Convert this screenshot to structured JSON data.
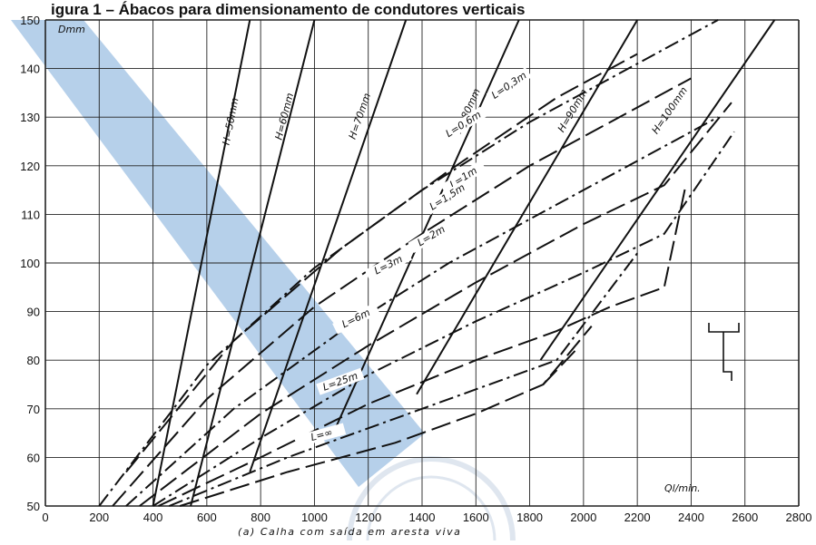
{
  "page": {
    "title": "igura 1 – Ábacos para dimensionamento de condutores verticais",
    "caption": "(a)  Calha com saída em aresta viva"
  },
  "chart_data": {
    "type": "line",
    "title": "igura 1 – Ábacos para dimensionamento de condutores verticais",
    "xlabel": "Ql/min.",
    "ylabel": "Dmm",
    "xlim": [
      0,
      2800
    ],
    "ylim": [
      50,
      150
    ],
    "x_ticks": [
      0,
      200,
      400,
      600,
      800,
      1000,
      1200,
      1400,
      1600,
      1800,
      2000,
      2200,
      2400,
      2600,
      2800
    ],
    "y_ticks": [
      50,
      60,
      70,
      80,
      90,
      100,
      110,
      120,
      130,
      140,
      150
    ],
    "grid": true,
    "colors": {
      "ink": "#111111",
      "grid": "#222222",
      "band": "#a9c8e6",
      "watermark": "#b9c9dc"
    },
    "h_series": [
      {
        "label": "H=50mm",
        "points": [
          [
            400,
            50
          ],
          [
            760,
            150
          ]
        ],
        "label_at": [
          700,
          129
        ]
      },
      {
        "label": "H=60mm",
        "points": [
          [
            540,
            50
          ],
          [
            1000,
            150
          ]
        ],
        "label_at": [
          900,
          130
        ]
      },
      {
        "label": "H=70mm",
        "points": [
          [
            760,
            57
          ],
          [
            1340,
            150
          ]
        ],
        "label_at": [
          1180,
          130
        ]
      },
      {
        "label": "H=80mm",
        "points": [
          [
            1070,
            65
          ],
          [
            1760,
            150
          ]
        ],
        "label_at": [
          1580,
          131
        ]
      },
      {
        "label": "H=90mm",
        "points": [
          [
            1380,
            73
          ],
          [
            2200,
            150
          ]
        ],
        "label_at": [
          1970,
          131
        ]
      },
      {
        "label": "H=100mm",
        "points": [
          [
            1840,
            80
          ],
          [
            2710,
            150
          ]
        ],
        "label_at": [
          2330,
          131
        ]
      }
    ],
    "l_series": [
      {
        "label": "L=0,3m",
        "dash": "long",
        "points": [
          [
            300,
            57
          ],
          [
            700,
            84
          ],
          [
            1100,
            103
          ],
          [
            1500,
            119
          ],
          [
            1900,
            134
          ],
          [
            2200,
            143
          ]
        ],
        "label_at": [
          1730,
          136
        ]
      },
      {
        "label": "L=0,6m",
        "dash": "dashdot",
        "points": [
          [
            200,
            50
          ],
          [
            600,
            79
          ],
          [
            1000,
            99
          ],
          [
            1400,
            115
          ],
          [
            1800,
            129
          ],
          [
            2200,
            141
          ],
          [
            2500,
            150
          ]
        ],
        "label_at": [
          1560,
          128
        ]
      },
      {
        "label": "L=1m",
        "dash": "long",
        "points": [
          [
            250,
            50
          ],
          [
            600,
            72
          ],
          [
            1000,
            91
          ],
          [
            1400,
            106
          ],
          [
            1800,
            120
          ],
          [
            2200,
            132
          ],
          [
            2400,
            138
          ]
        ],
        "label_at": [
          1560,
          117
        ]
      },
      {
        "label": "L=1,5m",
        "dash": "dashdot",
        "points": [
          [
            300,
            50
          ],
          [
            700,
            70
          ],
          [
            1100,
            86
          ],
          [
            1500,
            100
          ],
          [
            1900,
            112
          ],
          [
            2300,
            124
          ],
          [
            2500,
            130
          ]
        ],
        "label_at": [
          1500,
          113
        ]
      },
      {
        "label": "L=2m",
        "dash": "long",
        "points": [
          [
            350,
            50
          ],
          [
            800,
            69
          ],
          [
            1200,
            83
          ],
          [
            1600,
            96
          ],
          [
            2000,
            108
          ],
          [
            2300,
            116
          ],
          [
            2550,
            133
          ]
        ],
        "label_at": [
          1440,
          105
        ]
      },
      {
        "label": "L=3m",
        "dash": "dashdot",
        "points": [
          [
            400,
            50
          ],
          [
            800,
            64
          ],
          [
            1200,
            77
          ],
          [
            1600,
            88
          ],
          [
            2000,
            98
          ],
          [
            2300,
            106
          ],
          [
            2560,
            127
          ]
        ],
        "label_at": [
          1280,
          99
        ]
      },
      {
        "label": "L=6m",
        "dash": "long",
        "points": [
          [
            420,
            50
          ],
          [
            800,
            60
          ],
          [
            1200,
            71
          ],
          [
            1600,
            80
          ],
          [
            1900,
            86
          ],
          [
            2100,
            91
          ],
          [
            2300,
            95
          ],
          [
            2380,
            116
          ]
        ],
        "label_at": [
          1160,
          88
        ]
      },
      {
        "label": "L=25m",
        "dash": "dashdot",
        "points": [
          [
            460,
            50
          ],
          [
            900,
            60
          ],
          [
            1300,
            68
          ],
          [
            1600,
            74
          ],
          [
            1900,
            80
          ],
          [
            2200,
            102
          ]
        ],
        "label_at": [
          1100,
          75
        ]
      },
      {
        "label": "L=∞",
        "dash": "long",
        "points": [
          [
            500,
            50
          ],
          [
            900,
            57
          ],
          [
            1300,
            63
          ],
          [
            1600,
            69
          ],
          [
            1850,
            75
          ],
          [
            2030,
            87
          ]
        ],
        "label_at": [
          1030,
          64
        ]
      },
      {
        "label": "",
        "dash": "long",
        "points": [
          [
            1850,
            75
          ],
          [
            1970,
            82
          ]
        ],
        "label_at": null
      }
    ]
  }
}
